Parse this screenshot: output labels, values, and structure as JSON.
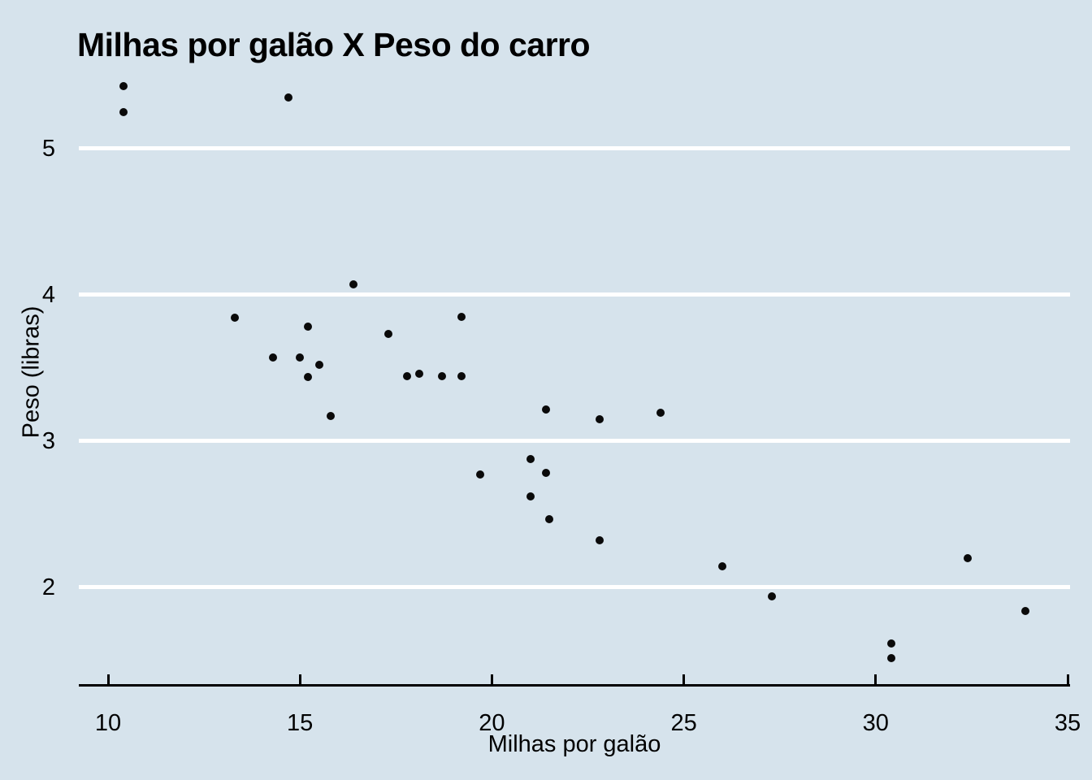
{
  "title": "Milhas por galão X Peso do carro",
  "x_axis": {
    "label": "Milhas por galão",
    "ticks": [
      10,
      15,
      20,
      25,
      30,
      35
    ]
  },
  "y_axis": {
    "label": "Peso (libras)",
    "ticks": [
      2,
      3,
      4,
      5
    ]
  },
  "colors": {
    "background": "#d6e3ec",
    "gridline": "#ffffff",
    "axis": "#000000",
    "point": "#0a0a0a",
    "text": "#000000"
  },
  "chart_data": {
    "type": "scatter",
    "title": "Milhas por galão X Peso do carro",
    "xlabel": "Milhas por galão",
    "ylabel": "Peso (libras)",
    "xlim": [
      9.2,
      35.1
    ],
    "ylim": [
      1.35,
      5.6
    ],
    "x_ticks": [
      10,
      15,
      20,
      25,
      30,
      35
    ],
    "y_ticks": [
      2,
      3,
      4,
      5
    ],
    "grid": "horizontal white gridlines at y ticks",
    "legend": "none",
    "points": [
      [
        21.0,
        2.62
      ],
      [
        21.0,
        2.875
      ],
      [
        22.8,
        2.32
      ],
      [
        21.4,
        3.215
      ],
      [
        18.7,
        3.44
      ],
      [
        18.1,
        3.46
      ],
      [
        14.3,
        3.57
      ],
      [
        24.4,
        3.19
      ],
      [
        22.8,
        3.15
      ],
      [
        19.2,
        3.44
      ],
      [
        17.8,
        3.44
      ],
      [
        16.4,
        4.07
      ],
      [
        17.3,
        3.73
      ],
      [
        15.2,
        3.78
      ],
      [
        10.4,
        5.25
      ],
      [
        10.4,
        5.424
      ],
      [
        14.7,
        5.345
      ],
      [
        32.4,
        2.2
      ],
      [
        30.4,
        1.615
      ],
      [
        33.9,
        1.835
      ],
      [
        21.5,
        2.465
      ],
      [
        15.5,
        3.52
      ],
      [
        15.2,
        3.435
      ],
      [
        13.3,
        3.84
      ],
      [
        19.2,
        3.845
      ],
      [
        27.3,
        1.935
      ],
      [
        26.0,
        2.14
      ],
      [
        30.4,
        1.513
      ],
      [
        15.8,
        3.17
      ],
      [
        19.7,
        2.77
      ],
      [
        15.0,
        3.57
      ],
      [
        21.4,
        2.78
      ]
    ]
  }
}
